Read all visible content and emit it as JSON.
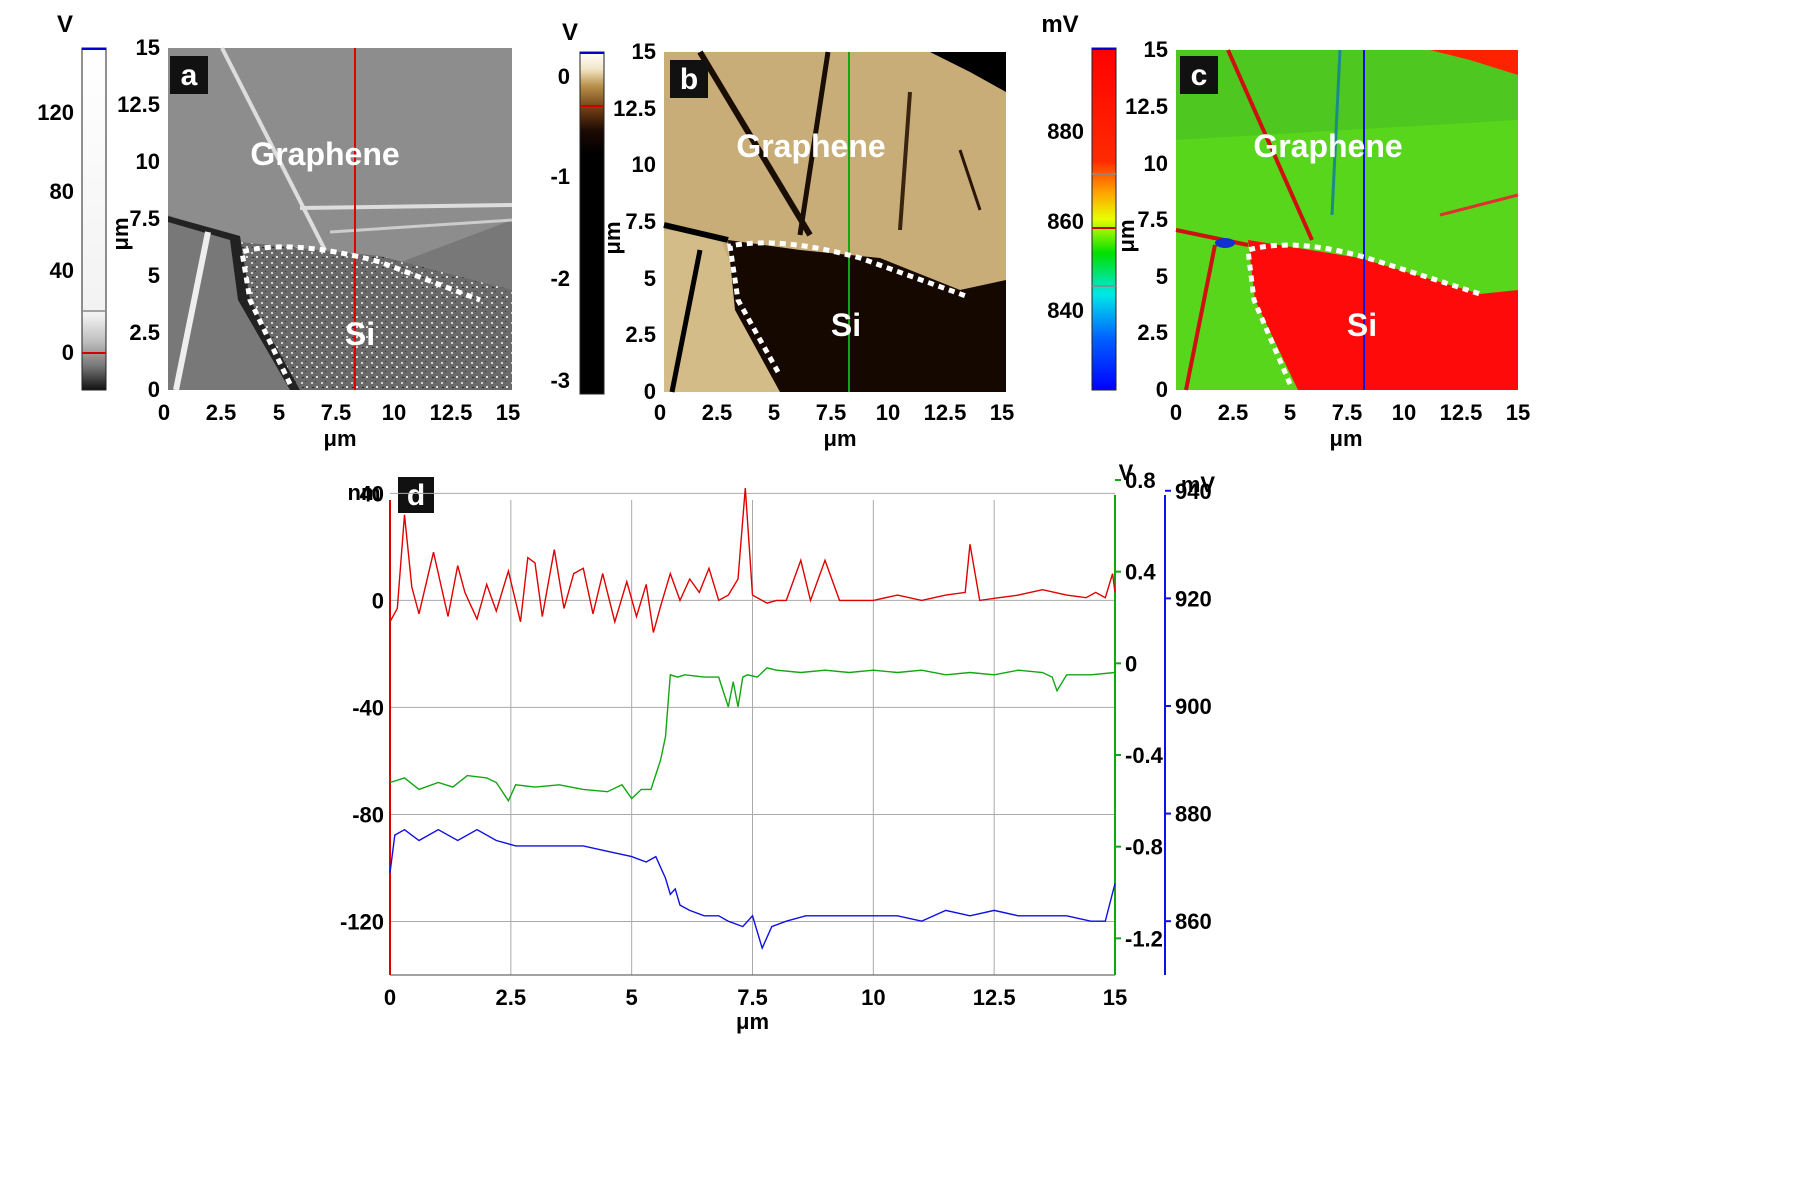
{
  "colors": {
    "topo_red": "#e00000",
    "phase_green": "#13a613",
    "potential_blue": "#1010e0",
    "grid": "#aaaaaa",
    "dashed_boundary": "#ffffff"
  },
  "panels": {
    "a": {
      "label": "a",
      "colorbar_unit": "V",
      "colorbar_ticks": [
        "120",
        "80",
        "40",
        "0"
      ],
      "axis_unit": "μm",
      "x_ticks": [
        "0",
        "2.5",
        "5",
        "7.5",
        "10",
        "12.5",
        "15"
      ],
      "y_ticks": [
        "15",
        "12.5",
        "10",
        "7.5",
        "5",
        "2.5",
        "0"
      ],
      "region_labels": [
        "Graphene",
        "Si"
      ]
    },
    "b": {
      "label": "b",
      "colorbar_unit": "V",
      "colorbar_ticks": [
        "0",
        "-1",
        "-2",
        "-3"
      ],
      "axis_unit": "μm",
      "x_ticks": [
        "0",
        "2.5",
        "5",
        "7.5",
        "10",
        "12.5",
        "15"
      ],
      "y_ticks": [
        "15",
        "12.5",
        "10",
        "7.5",
        "5",
        "2.5",
        "0"
      ],
      "region_labels": [
        "Graphene",
        "Si"
      ]
    },
    "c": {
      "label": "c",
      "colorbar_unit": "mV",
      "colorbar_ticks": [
        "880",
        "860",
        "840"
      ],
      "axis_unit": "μm",
      "x_ticks": [
        "0",
        "2.5",
        "5",
        "7.5",
        "10",
        "12.5",
        "15"
      ],
      "y_ticks": [
        "15",
        "12.5",
        "10",
        "7.5",
        "5",
        "2.5",
        "0"
      ],
      "region_labels": [
        "Graphene",
        "Si"
      ]
    }
  },
  "chart_data": {
    "type": "line",
    "label": "d",
    "xlabel": "μm",
    "xlim": [
      0,
      15
    ],
    "x_ticks": [
      "0",
      "2.5",
      "5",
      "7.5",
      "10",
      "12.5",
      "15"
    ],
    "grid": true,
    "axes": {
      "left": {
        "unit": "nm",
        "ticks": [
          "40",
          "0",
          "-40",
          "-80",
          "-120"
        ],
        "ylim": [
          -140,
          45
        ]
      },
      "right1": {
        "unit": "V",
        "ticks": [
          "0.8",
          "0.4",
          "0",
          "-0.4",
          "-0.8",
          "-1.2"
        ],
        "ylim": [
          -1.36,
          0.8
        ]
      },
      "right2": {
        "unit": "mV",
        "ticks": [
          "940",
          "920",
          "900",
          "880",
          "860"
        ],
        "ylim": [
          850,
          942
        ]
      }
    },
    "series": [
      {
        "axis": "left",
        "color": "#e00000",
        "x": [
          0,
          0.15,
          0.3,
          0.45,
          0.6,
          0.9,
          1.2,
          1.4,
          1.55,
          1.8,
          2.0,
          2.2,
          2.45,
          2.7,
          2.85,
          3.0,
          3.15,
          3.4,
          3.6,
          3.8,
          4.0,
          4.2,
          4.4,
          4.65,
          4.9,
          5.1,
          5.3,
          5.45,
          5.6,
          5.8,
          6.0,
          6.2,
          6.4,
          6.6,
          6.8,
          7.0,
          7.2,
          7.35,
          7.5,
          7.8,
          8.0,
          8.2,
          8.5,
          8.7,
          9.0,
          9.3,
          9.6,
          10.0,
          10.5,
          11.0,
          11.5,
          11.9,
          12.0,
          12.2,
          12.6,
          13.0,
          13.5,
          14.0,
          14.4,
          14.6,
          14.8,
          14.95,
          15.0
        ],
        "values": [
          -8,
          -3,
          32,
          5,
          -5,
          18,
          -6,
          13,
          3,
          -7,
          6,
          -4,
          11,
          -8,
          16,
          14,
          -6,
          19,
          -3,
          10,
          12,
          -5,
          10,
          -8,
          7,
          -6,
          6,
          -12,
          -2,
          10,
          0,
          8,
          3,
          12,
          0,
          2,
          8,
          42,
          2,
          -1,
          0,
          0,
          15,
          0,
          15,
          0,
          0,
          0,
          2,
          0,
          2,
          3,
          21,
          0,
          1,
          2,
          4,
          2,
          1,
          3,
          1,
          10,
          3
        ]
      },
      {
        "axis": "right1",
        "color": "#13a613",
        "x": [
          0,
          0.3,
          0.6,
          1.0,
          1.3,
          1.6,
          2.0,
          2.2,
          2.45,
          2.6,
          3.0,
          3.5,
          4.0,
          4.5,
          4.8,
          5.0,
          5.2,
          5.4,
          5.6,
          5.7,
          5.8,
          5.95,
          6.1,
          6.5,
          6.8,
          7.0,
          7.1,
          7.2,
          7.3,
          7.4,
          7.6,
          7.8,
          8.0,
          8.5,
          9.0,
          9.5,
          10.0,
          10.5,
          11.0,
          11.5,
          12.0,
          12.5,
          13.0,
          13.5,
          13.7,
          13.8,
          14.0,
          14.5,
          15.0
        ],
        "values": [
          -0.52,
          -0.5,
          -0.55,
          -0.52,
          -0.54,
          -0.49,
          -0.5,
          -0.52,
          -0.6,
          -0.53,
          -0.54,
          -0.53,
          -0.55,
          -0.56,
          -0.53,
          -0.59,
          -0.55,
          -0.55,
          -0.42,
          -0.32,
          -0.05,
          -0.06,
          -0.05,
          -0.06,
          -0.06,
          -0.19,
          -0.08,
          -0.19,
          -0.06,
          -0.05,
          -0.06,
          -0.02,
          -0.03,
          -0.04,
          -0.03,
          -0.04,
          -0.03,
          -0.04,
          -0.03,
          -0.05,
          -0.04,
          -0.05,
          -0.03,
          -0.04,
          -0.06,
          -0.12,
          -0.05,
          -0.05,
          -0.04
        ]
      },
      {
        "axis": "right2",
        "color": "#1010e0",
        "x": [
          0,
          0.1,
          0.3,
          0.6,
          1.0,
          1.4,
          1.8,
          2.2,
          2.6,
          3.0,
          3.5,
          4.0,
          4.5,
          5.0,
          5.3,
          5.5,
          5.7,
          5.8,
          5.9,
          6.0,
          6.2,
          6.5,
          6.8,
          7.0,
          7.3,
          7.5,
          7.7,
          7.9,
          8.2,
          8.6,
          9.0,
          9.5,
          10.0,
          10.5,
          11.0,
          11.5,
          12.0,
          12.5,
          13.0,
          13.5,
          14.0,
          14.5,
          14.8,
          15.0
        ],
        "values": [
          869,
          876,
          877,
          875,
          877,
          875,
          877,
          875,
          874,
          874,
          874,
          874,
          873,
          872,
          871,
          872,
          868,
          865,
          866,
          863,
          862,
          861,
          861,
          860,
          859,
          861,
          855,
          859,
          860,
          861,
          861,
          861,
          861,
          861,
          860,
          862,
          861,
          862,
          861,
          861,
          861,
          860,
          860,
          867
        ]
      }
    ]
  }
}
